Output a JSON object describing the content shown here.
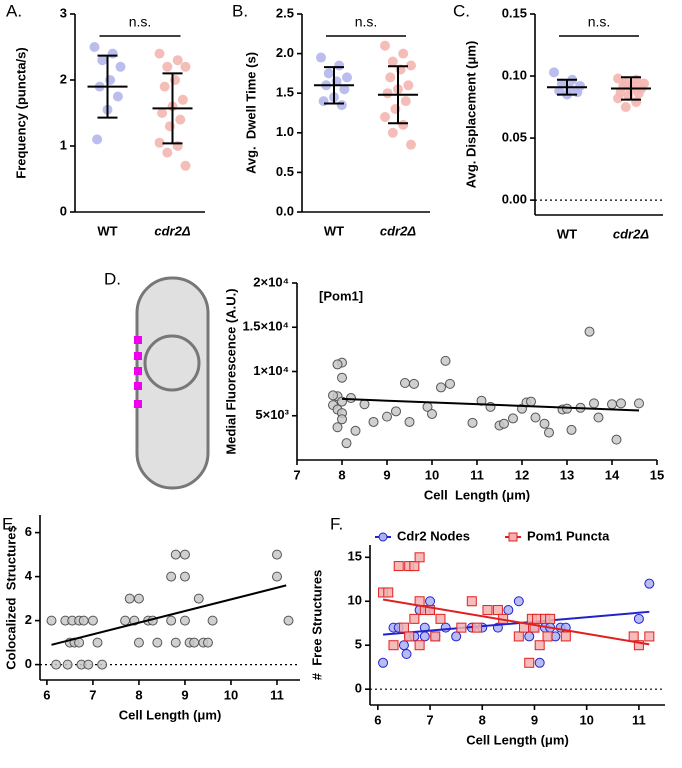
{
  "chart_data": [
    {
      "type": "dotplot",
      "panel": "A.",
      "ylabel": "Frequency (puncta/s)",
      "categories": [
        "WT",
        "cdr2Δ"
      ],
      "annotation": "n.s.",
      "groups": [
        {
          "color": "#b4b6ec",
          "values": [
            2.5,
            2.4,
            2.3,
            2.2,
            2.0,
            1.9,
            1.75,
            1.55,
            1.1
          ],
          "mean": 1.9,
          "sd": 0.47
        },
        {
          "color": "#f4b6b0",
          "values": [
            2.4,
            2.3,
            2.2,
            2.2,
            2.0,
            1.9,
            1.7,
            1.6,
            1.5,
            1.4,
            1.3,
            1.05,
            1.0,
            0.9,
            0.7
          ],
          "mean": 1.57,
          "sd": 0.53
        }
      ],
      "ylim": [
        0,
        3
      ],
      "yticks": [
        0,
        1,
        2,
        3
      ],
      "zero_line": false
    },
    {
      "type": "dotplot",
      "panel": "B.",
      "ylabel": "Avg.  Dwell Time (s)",
      "categories": [
        "WT",
        "cdr2Δ"
      ],
      "annotation": "n.s.",
      "groups": [
        {
          "color": "#b4b6ec",
          "values": [
            1.95,
            1.85,
            1.75,
            1.7,
            1.65,
            1.6,
            1.55,
            1.45,
            1.4,
            1.35
          ],
          "mean": 1.6,
          "sd": 0.23
        },
        {
          "color": "#f4b6b0",
          "values": [
            2.1,
            2.0,
            1.9,
            1.85,
            1.8,
            1.7,
            1.6,
            1.55,
            1.5,
            1.4,
            1.3,
            1.2,
            1.1,
            1.0,
            0.85
          ],
          "mean": 1.48,
          "sd": 0.36
        }
      ],
      "ylim": [
        0,
        2.5
      ],
      "yticks": [
        {
          "value": 0,
          "label": "0.0"
        },
        0.5,
        {
          "value": 1,
          "label": "1.0"
        },
        1.5,
        {
          "value": 2,
          "label": "2.0"
        },
        2.5
      ],
      "zero_line": false
    },
    {
      "type": "dotplot",
      "panel": "C.",
      "ylabel": "Avg. Displacement (μm)",
      "categories": [
        "WT",
        "cdr2Δ"
      ],
      "annotation": "n.s.",
      "groups": [
        {
          "color": "#b4b6ec",
          "values": [
            0.103,
            0.097,
            0.094,
            0.092,
            0.09,
            0.088,
            0.087,
            0.085
          ],
          "mean": 0.091,
          "sd": 0.006
        },
        {
          "color": "#f4b6b0",
          "values": [
            0.098,
            0.097,
            0.095,
            0.094,
            0.093,
            0.092,
            0.09,
            0.089,
            0.087,
            0.086,
            0.084,
            0.082,
            0.079,
            0.075
          ],
          "mean": 0.09,
          "sd": 0.009
        }
      ],
      "ylim": [
        -0.012,
        0.15
      ],
      "yticks": [
        {
          "value": 0,
          "label": "0.00"
        },
        {
          "value": 0.05,
          "label": "0.05"
        },
        {
          "value": 0.1,
          "label": "0.10"
        },
        {
          "value": 0.15,
          "label": "0.15"
        }
      ],
      "zero_line": true
    },
    {
      "type": "scatter",
      "panel": "D.",
      "annotation": "[Pom1]",
      "xlabel": "Cell  Length (μm)",
      "ylabel": "Medial Fluorescence (A.U.)",
      "series": [
        {
          "color": "#c8c8c8",
          "edge_color": "#555555",
          "marker": "circle",
          "fit_color": "#000000",
          "x": [
            7.8,
            7.9,
            7.8,
            8.0,
            7.9,
            8.0,
            7.9,
            8.0,
            8.0,
            7.9,
            8.1,
            8.2,
            8.0,
            8.3,
            8.5,
            8.7,
            9.0,
            9.2,
            9.4,
            9.6,
            9.5,
            9.9,
            10.0,
            10.2,
            10.3,
            10.4,
            10.9,
            11.1,
            11.3,
            11.5,
            11.6,
            11.8,
            12.0,
            12.1,
            12.2,
            12.3,
            12.5,
            12.6,
            12.9,
            13.0,
            13.1,
            13.3,
            13.5,
            13.6,
            13.7,
            14.0,
            14.1,
            14.2,
            14.6
          ],
          "values": [
            6200,
            7200,
            7300,
            11000,
            10800,
            9300,
            5700,
            5300,
            4600,
            3700,
            1900,
            7000,
            6600,
            3300,
            6300,
            4300,
            4900,
            5500,
            8700,
            8600,
            4300,
            6000,
            5200,
            8200,
            11200,
            8600,
            4200,
            6700,
            6000,
            3900,
            4100,
            4700,
            5800,
            6500,
            6600,
            4800,
            4100,
            3100,
            5700,
            5800,
            3400,
            5900,
            14500,
            6400,
            4800,
            6300,
            2300,
            6400,
            6400
          ],
          "fit_x": [
            8.0,
            14.6
          ],
          "fit_y": [
            6900,
            5600
          ]
        }
      ],
      "xlim": [
        7,
        15
      ],
      "xticks": [
        7,
        8,
        9,
        10,
        11,
        12,
        13,
        14,
        15
      ],
      "ylim": [
        0,
        20000
      ],
      "yticks": [
        {
          "value": 5000,
          "label": "5×10³"
        },
        {
          "value": 10000,
          "label": "1×10⁴"
        },
        {
          "value": 15000,
          "label": "1.5×10⁴"
        },
        {
          "value": 20000,
          "label": "2×10⁴"
        }
      ],
      "zero_line": false
    },
    {
      "type": "scatter",
      "panel": "E.",
      "xlabel": "Cell Length (μm)",
      "ylabel": "Colocalized  Structures",
      "series": [
        {
          "color": "#c8c8c8",
          "edge_color": "#555555",
          "marker": "circle",
          "fit_color": "#000000",
          "x": [
            6.1,
            6.2,
            6.4,
            6.45,
            6.5,
            6.55,
            6.6,
            6.7,
            6.7,
            6.8,
            6.75,
            6.9,
            7.0,
            7.1,
            7.2,
            7.7,
            7.8,
            7.9,
            8.0,
            8.0,
            8.2,
            8.3,
            8.4,
            8.7,
            8.7,
            8.8,
            8.8,
            9.0,
            9.0,
            9.0,
            9.1,
            9.2,
            9.3,
            9.4,
            9.5,
            9.6,
            11.0,
            11.0,
            11.25
          ],
          "values": [
            2,
            0,
            2,
            0,
            1,
            2,
            1,
            2,
            1,
            2,
            0,
            0,
            2,
            1,
            0,
            2,
            3,
            2,
            3,
            1,
            2,
            2,
            1,
            4,
            2,
            5,
            1,
            5,
            4,
            2,
            1,
            1,
            3,
            1,
            1,
            2,
            5,
            4,
            2
          ],
          "fit_x": [
            6.1,
            11.2
          ],
          "fit_y": [
            0.9,
            3.6
          ]
        }
      ],
      "xlim": [
        5.85,
        11.5
      ],
      "xticks": [
        6,
        7,
        8,
        9,
        10,
        11
      ],
      "ylim": [
        -0.7,
        6.8
      ],
      "yticks": [
        0,
        2,
        4,
        6
      ],
      "zero_line": true
    },
    {
      "type": "scatter",
      "panel": "F.",
      "xlabel": "Cell Length (μm)",
      "ylabel": "#  Free Structures",
      "legend": "top",
      "series": [
        {
          "name": "Cdr2 Nodes",
          "color": "#aab0f0",
          "edge_color": "#2222cc",
          "marker": "circle",
          "fit_color": "#2222cc",
          "x": [
            6.1,
            6.3,
            6.4,
            6.5,
            6.55,
            6.6,
            6.7,
            6.8,
            6.9,
            6.9,
            7.0,
            7.0,
            7.1,
            7.3,
            7.5,
            7.8,
            8.0,
            8.3,
            8.5,
            8.7,
            8.9,
            9.0,
            9.1,
            9.2,
            9.3,
            9.4,
            9.5,
            9.6,
            11.0,
            11.2
          ],
          "values": [
            3,
            7,
            7,
            5,
            4,
            6,
            6,
            9,
            7,
            6,
            10,
            9,
            6,
            7,
            6,
            7,
            7,
            7,
            9,
            10,
            6,
            7,
            3,
            7,
            7,
            6,
            7,
            7,
            8,
            12
          ],
          "fit_x": [
            6.1,
            11.2
          ],
          "fit_y": [
            6.2,
            8.8
          ]
        },
        {
          "name": "Pom1 Puncta",
          "color": "#f4b0b0",
          "edge_color": "#e02020",
          "marker": "square",
          "fit_color": "#e02020",
          "x": [
            6.1,
            6.2,
            6.3,
            6.4,
            6.5,
            6.6,
            6.6,
            6.7,
            6.7,
            6.8,
            6.8,
            6.8,
            6.9,
            7.0,
            7.1,
            7.2,
            7.6,
            7.8,
            7.9,
            8.1,
            8.3,
            8.4,
            8.7,
            8.8,
            8.9,
            8.95,
            9.0,
            9.05,
            9.1,
            9.2,
            9.25,
            9.3,
            9.6,
            10.9,
            11.0,
            11.2
          ],
          "values": [
            11,
            11,
            5,
            14,
            7,
            14,
            6,
            8,
            14,
            15,
            10,
            5,
            9,
            9,
            6,
            8,
            7,
            10,
            7,
            9,
            9,
            8,
            6,
            7,
            3,
            8,
            7,
            8,
            5,
            8,
            6,
            8,
            6,
            6,
            5,
            6
          ],
          "fit_x": [
            6.1,
            11.2
          ],
          "fit_y": [
            10.2,
            5.1
          ]
        }
      ],
      "xlim": [
        5.85,
        11.5
      ],
      "xticks": [
        6,
        7,
        8,
        9,
        10,
        11
      ],
      "ylim": [
        -1.8,
        16.4
      ],
      "yticks": [
        0,
        5,
        10,
        15
      ],
      "zero_line": true
    }
  ]
}
